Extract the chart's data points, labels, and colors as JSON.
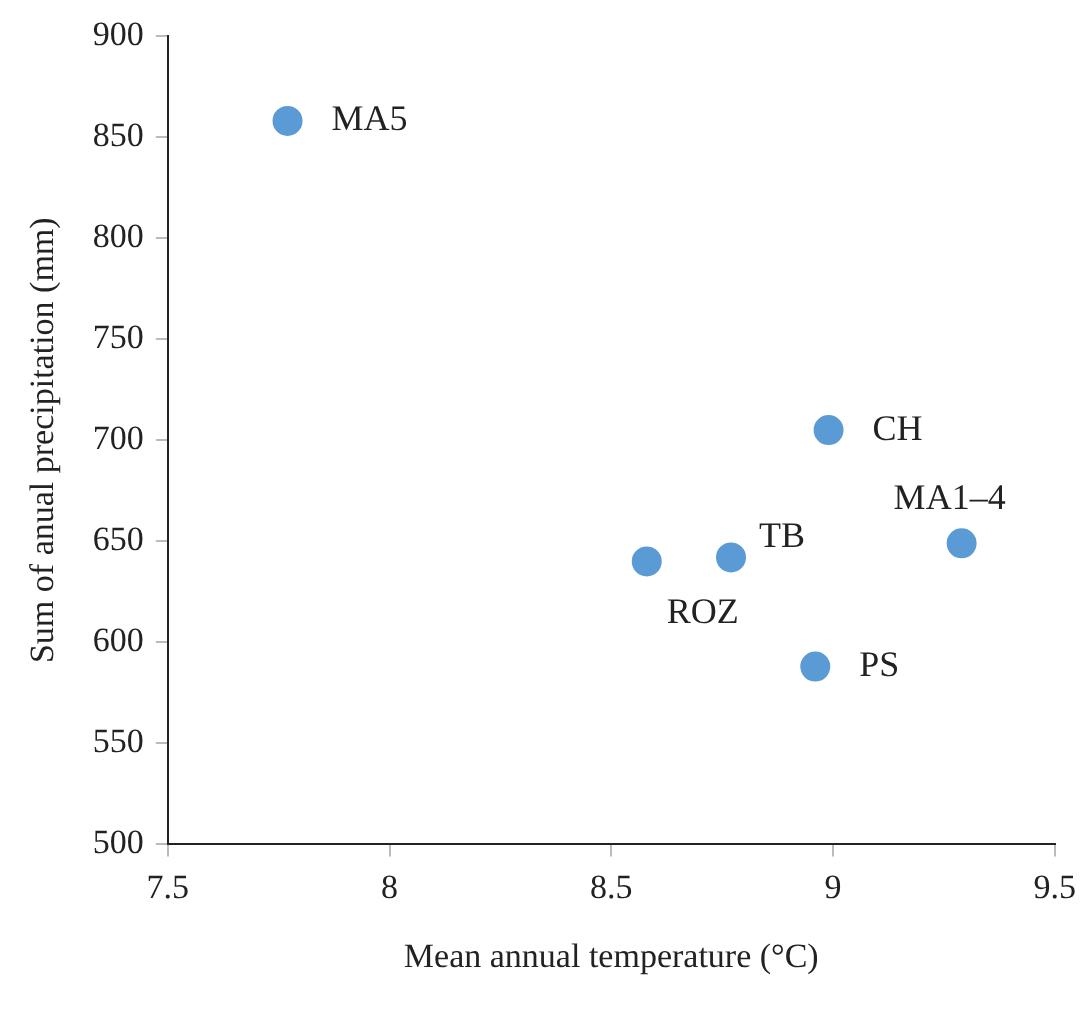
{
  "chart_data": {
    "type": "scatter",
    "xlabel": "Mean annual temperature (°C)",
    "ylabel": "Sum of anual precipitation (mm)",
    "x": [
      7.77,
      8.99,
      9.29,
      8.77,
      8.58,
      8.96
    ],
    "values": [
      858,
      705,
      649,
      642,
      640,
      588
    ],
    "color": "#5b9bd5",
    "marker": "circle",
    "grid": false,
    "legend": false,
    "xlim": [
      7.5,
      9.5
    ],
    "xticks": [
      7.5,
      8,
      8.5,
      9,
      9.5
    ],
    "ylim": [
      500,
      900
    ],
    "yticks": [
      500,
      550,
      600,
      650,
      700,
      750,
      800,
      850,
      900
    ],
    "annotations": [
      {
        "text": "MA5",
        "x": 7.77,
        "y": 858
      },
      {
        "text": "CH",
        "x": 8.99,
        "y": 705
      },
      {
        "text": "MA1–4",
        "x": 9.29,
        "y": 649
      },
      {
        "text": "TB",
        "x": 8.77,
        "y": 642
      },
      {
        "text": "ROZ",
        "x": 8.58,
        "y": 640
      },
      {
        "text": "PS",
        "x": 8.96,
        "y": 588
      }
    ]
  }
}
